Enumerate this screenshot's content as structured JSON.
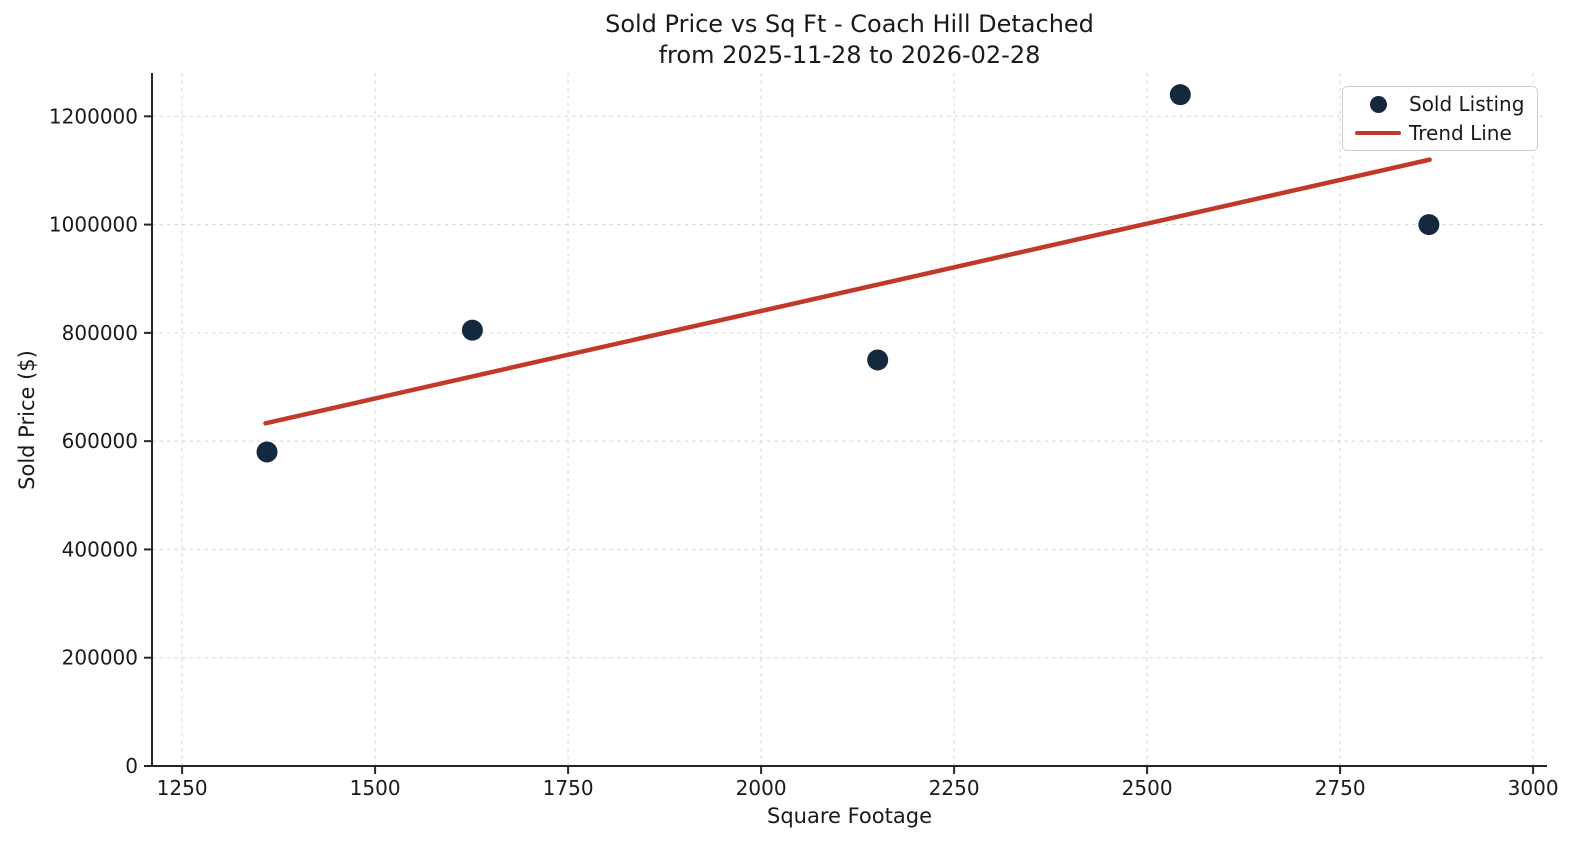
{
  "chart_data": {
    "type": "scatter",
    "title": "Sold Price vs Sq Ft - Coach Hill Detached",
    "subtitle": "from 2025-11-28 to 2026-02-28",
    "xlabel": "Square Footage",
    "ylabel": "Sold Price ($)",
    "xlim": [
      1211,
      3018
    ],
    "ylim": [
      0,
      1280000
    ],
    "x_ticks": [
      1250,
      1500,
      1750,
      2000,
      2250,
      2500,
      2750,
      3000
    ],
    "y_ticks": [
      0,
      200000,
      400000,
      600000,
      800000,
      1000000,
      1200000
    ],
    "grid": true,
    "legend_position": "upper right",
    "series": [
      {
        "name": "Sold Listing",
        "type": "scatter",
        "color": "#14293e",
        "points": [
          {
            "x": 1360,
            "y": 580000
          },
          {
            "x": 1626,
            "y": 805000
          },
          {
            "x": 2151,
            "y": 750000
          },
          {
            "x": 2543,
            "y": 1240000
          },
          {
            "x": 2865,
            "y": 1000000
          }
        ]
      },
      {
        "name": "Trend Line",
        "type": "line",
        "color": "#c0392b",
        "points": [
          {
            "x": 1358,
            "y": 633000
          },
          {
            "x": 2866,
            "y": 1120000
          }
        ]
      }
    ]
  }
}
